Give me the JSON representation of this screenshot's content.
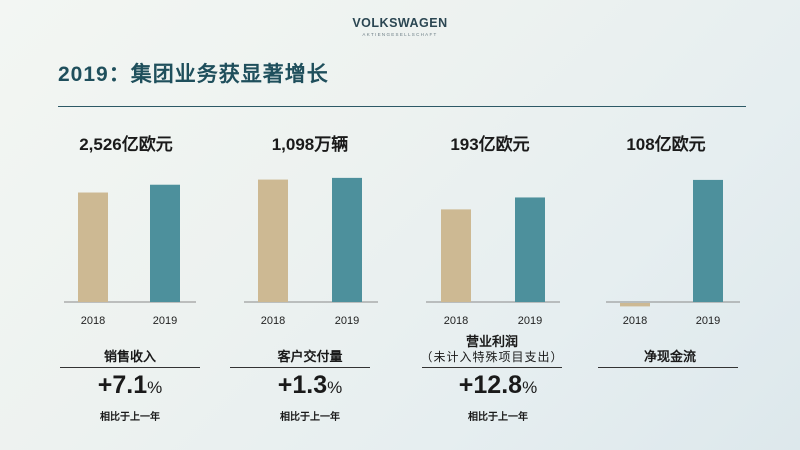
{
  "brand": {
    "name": "VOLKSWAGEN",
    "sub": "AKTIENGESELLSCHAFT"
  },
  "page_title": "2019：集团业务获显著增长",
  "colors": {
    "y2018": "#cdb993",
    "y2019": "#4d909c",
    "title": "#1f4f5c"
  },
  "metrics": [
    {
      "headline": "2,526亿欧元",
      "name": "销售收入",
      "note": "",
      "growth_num": "+7.1",
      "growth_pct": "%",
      "growth_label": "相比于上一年"
    },
    {
      "headline": "1,098万辆",
      "name": "客户交付量",
      "note": "",
      "growth_num": "+1.3",
      "growth_pct": "%",
      "growth_label": "相比于上一年"
    },
    {
      "headline": "193亿欧元",
      "name": "营业利润",
      "note": "（未计入特殊项目支出）",
      "growth_num": "+12.8",
      "growth_pct": "%",
      "growth_label": "相比于上一年"
    },
    {
      "headline": "108亿欧元",
      "name": "净现金流",
      "note": "",
      "growth_num": "",
      "growth_pct": "",
      "growth_label": ""
    }
  ],
  "chart_data": [
    {
      "type": "bar",
      "title": "销售收入",
      "categories": [
        "2018",
        "2019"
      ],
      "values": [
        235.8,
        252.6
      ],
      "unit": "亿欧元 (x10)",
      "ylim": [
        0,
        280
      ]
    },
    {
      "type": "bar",
      "title": "客户交付量",
      "categories": [
        "2018",
        "2019"
      ],
      "values": [
        1083,
        1098
      ],
      "unit": "万辆",
      "ylim": [
        0,
        1150
      ]
    },
    {
      "type": "bar",
      "title": "营业利润",
      "categories": [
        "2018",
        "2019"
      ],
      "values": [
        171,
        193
      ],
      "unit": "亿欧元",
      "ylim": [
        0,
        240
      ]
    },
    {
      "type": "bar",
      "title": "净现金流",
      "categories": [
        "2018",
        "2019"
      ],
      "values": [
        -3,
        108
      ],
      "unit": "亿欧元",
      "ylim": [
        0,
        115
      ]
    }
  ]
}
